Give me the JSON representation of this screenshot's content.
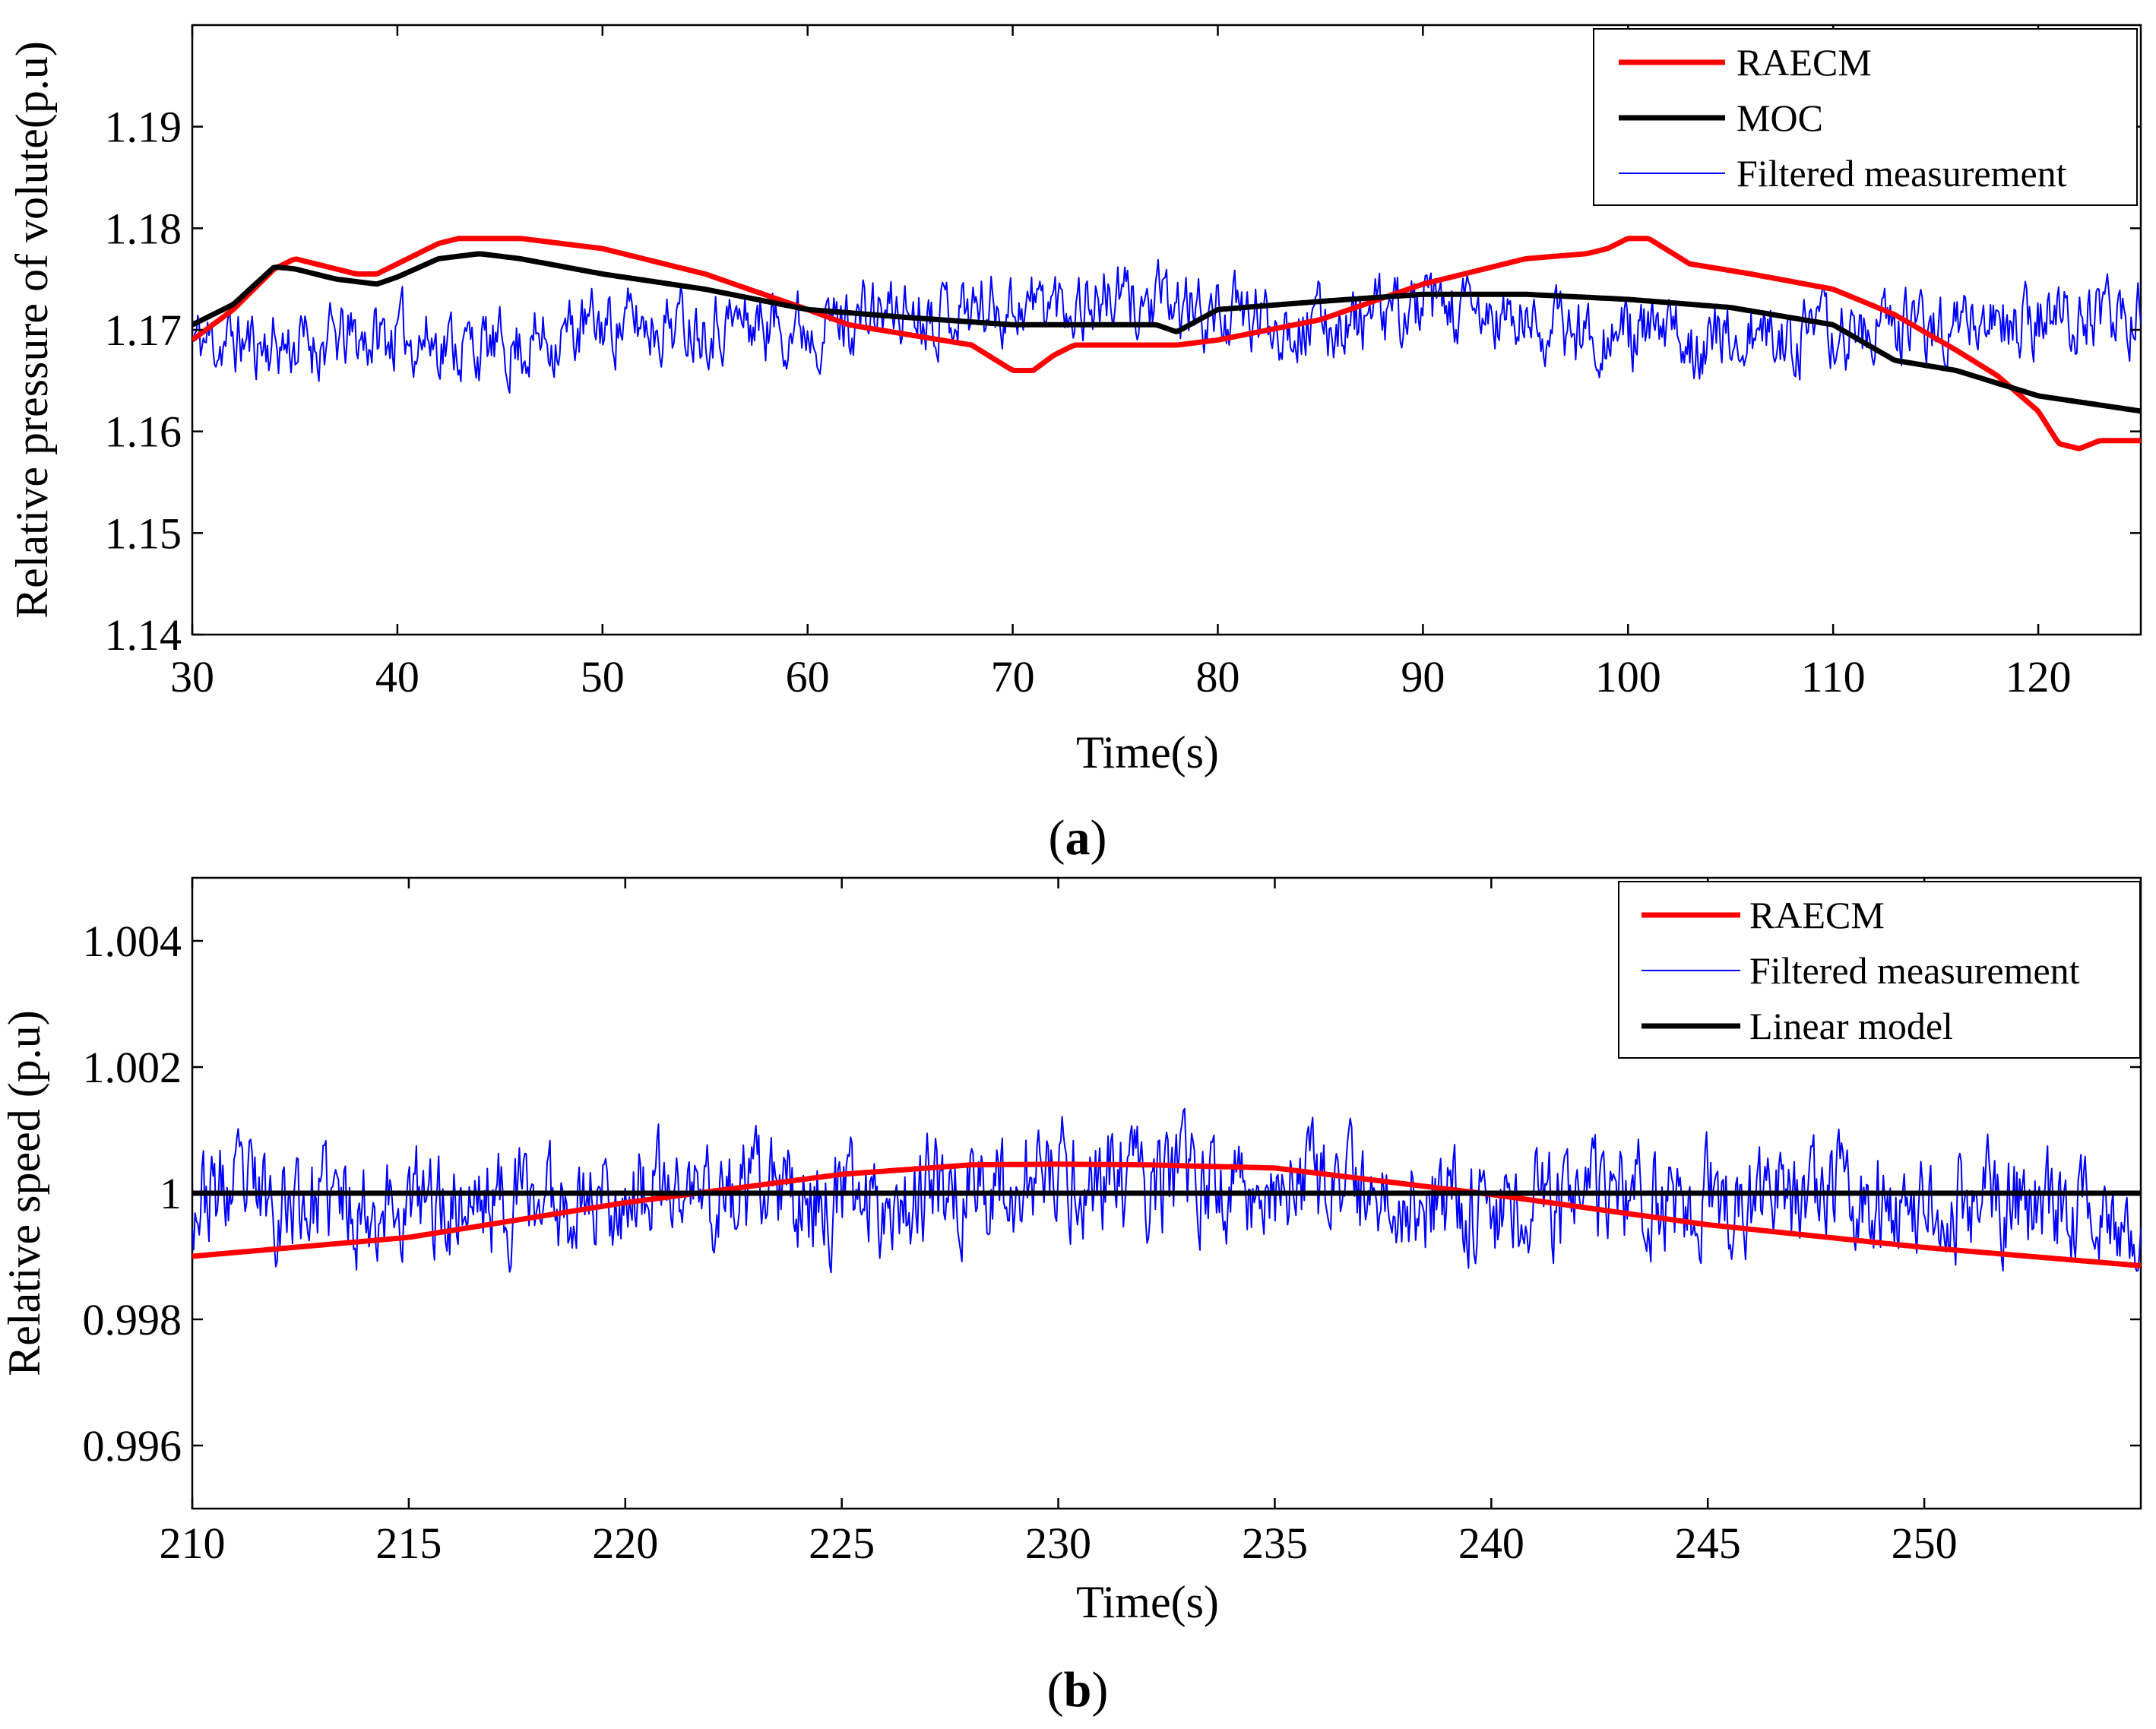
{
  "chart_data": [
    {
      "type": "line",
      "panel_label": "a",
      "xlabel": "Time(s)",
      "ylabel": "Relative pressure of volute(p.u)",
      "xlim": [
        30,
        125
      ],
      "ylim": [
        1.14,
        1.2
      ],
      "xticks": [
        30,
        40,
        50,
        60,
        70,
        80,
        90,
        100,
        110,
        120
      ],
      "xtick_labels": [
        "30",
        "40",
        "50",
        "60",
        "70",
        "80",
        "90",
        "100",
        "110",
        "120"
      ],
      "yticks": [
        1.14,
        1.15,
        1.16,
        1.17,
        1.18,
        1.19
      ],
      "ytick_labels": [
        "1.14",
        "1.15",
        "1.16",
        "1.17",
        "1.18",
        "1.19"
      ],
      "legend_position": "top-right",
      "series": [
        {
          "name": "RAECM",
          "color": "#ff0000",
          "weight": "thick",
          "x": [
            30,
            32,
            34,
            35,
            36,
            38,
            39,
            40,
            42,
            43,
            46,
            50,
            55,
            60,
            62,
            65,
            68,
            70,
            71,
            72,
            73,
            75,
            78,
            80,
            85,
            90,
            95,
            98,
            99,
            100,
            101,
            103,
            106,
            110,
            113,
            116,
            118,
            120,
            121,
            122,
            123,
            125
          ],
          "y": [
            1.169,
            1.172,
            1.176,
            1.177,
            1.1765,
            1.1755,
            1.1755,
            1.1765,
            1.1785,
            1.179,
            1.179,
            1.178,
            1.1755,
            1.172,
            1.1705,
            1.1695,
            1.1685,
            1.166,
            1.166,
            1.1675,
            1.1685,
            1.1685,
            1.1685,
            1.169,
            1.171,
            1.1745,
            1.177,
            1.1775,
            1.178,
            1.179,
            1.179,
            1.1765,
            1.1755,
            1.174,
            1.1715,
            1.168,
            1.1655,
            1.162,
            1.1588,
            1.1583,
            1.1591,
            1.1591
          ]
        },
        {
          "name": "MOC",
          "color": "#000000",
          "weight": "thick",
          "x": [
            30,
            32,
            34,
            35,
            37,
            39,
            40,
            42,
            44,
            46,
            50,
            55,
            60,
            65,
            70,
            75,
            77,
            78,
            80,
            85,
            90,
            95,
            100,
            105,
            110,
            113,
            116,
            120,
            125
          ],
          "y": [
            1.1705,
            1.1725,
            1.1762,
            1.176,
            1.175,
            1.1745,
            1.1752,
            1.177,
            1.1775,
            1.177,
            1.1755,
            1.174,
            1.172,
            1.1712,
            1.1705,
            1.1705,
            1.1705,
            1.1698,
            1.172,
            1.1728,
            1.1735,
            1.1735,
            1.173,
            1.1722,
            1.1705,
            1.167,
            1.166,
            1.1635,
            1.162
          ]
        },
        {
          "name": "Filtered measurement",
          "color": "#0000ff",
          "weight": "thin",
          "noise": {
            "mean": 1.1705,
            "amplitude": 0.0045,
            "seed": 11
          },
          "x": [
            30,
            35,
            40,
            45,
            50,
            55,
            60,
            65,
            70,
            75,
            80,
            85,
            90,
            95,
            100,
            105,
            110,
            115,
            120,
            125
          ],
          "y": [
            1.169,
            1.1685,
            1.1695,
            1.168,
            1.1705,
            1.171,
            1.1705,
            1.172,
            1.1725,
            1.173,
            1.1715,
            1.1705,
            1.172,
            1.1705,
            1.1695,
            1.169,
            1.1695,
            1.1705,
            1.171,
            1.1715
          ]
        }
      ]
    },
    {
      "type": "line",
      "panel_label": "b",
      "xlabel": "Time(s)",
      "ylabel": "Relative speed (p.u)",
      "xlim": [
        210,
        255
      ],
      "ylim": [
        0.995,
        1.005
      ],
      "xticks": [
        210,
        215,
        220,
        225,
        230,
        235,
        240,
        245,
        250
      ],
      "xtick_labels": [
        "210",
        "215",
        "220",
        "225",
        "230",
        "235",
        "240",
        "245",
        "250"
      ],
      "yticks": [
        0.996,
        0.998,
        1.0,
        1.002,
        1.004
      ],
      "ytick_labels": [
        "0.996",
        "0.998",
        "1",
        "1.002",
        "1.004"
      ],
      "legend_position": "top-right",
      "series": [
        {
          "name": "RAECM",
          "color": "#ff0000",
          "weight": "thick",
          "x": [
            210,
            215,
            220,
            225,
            228,
            230,
            232,
            235,
            240,
            245,
            250,
            255
          ],
          "y": [
            0.999,
            0.9993,
            0.99985,
            1.0003,
            1.00045,
            1.00046,
            1.00045,
            1.0004,
            0.99998,
            0.9995,
            0.99914,
            0.99885
          ]
        },
        {
          "name": "Filtered measurement",
          "color": "#0000ff",
          "weight": "thin",
          "noise": {
            "mean": 1.0,
            "amplitude": 0.0011,
            "seed": 23
          },
          "x": [
            210,
            215,
            220,
            225,
            230,
            235,
            240,
            245,
            250,
            255
          ],
          "y": [
            1.0,
            0.9998,
            1.0,
            0.9999,
            1.0002,
            1.0001,
            0.9998,
            0.9999,
            0.9999,
            0.9998
          ]
        },
        {
          "name": "Linear model",
          "color": "#000000",
          "weight": "thick",
          "x": [
            210,
            255
          ],
          "y": [
            1.0,
            1.0
          ]
        }
      ]
    }
  ]
}
